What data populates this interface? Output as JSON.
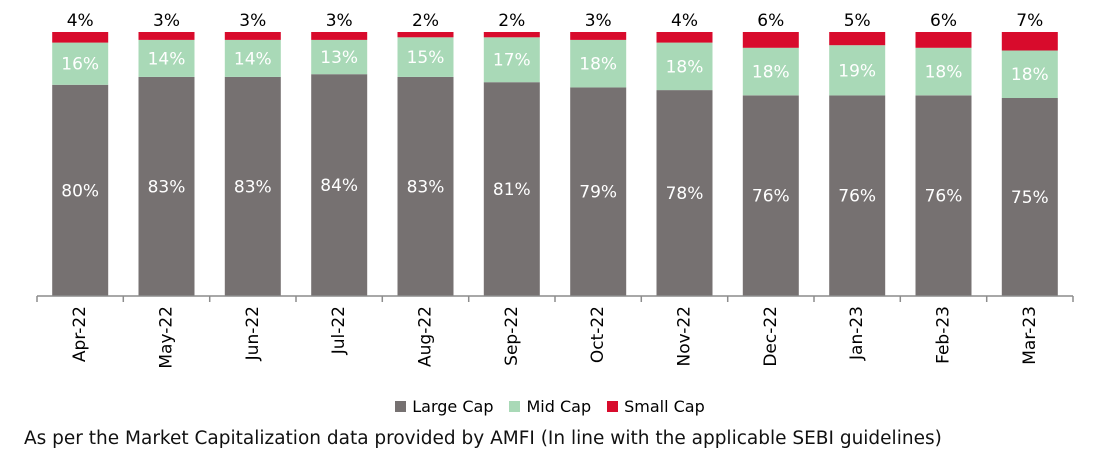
{
  "chart_data": {
    "type": "bar",
    "stacked": true,
    "categories": [
      "Apr-22",
      "May-22",
      "Jun-22",
      "Jul-22",
      "Aug-22",
      "Sep-22",
      "Oct-22",
      "Nov-22",
      "Dec-22",
      "Jan-23",
      "Feb-23",
      "Mar-23"
    ],
    "series": [
      {
        "name": "Large Cap",
        "color": "#767171",
        "values": [
          80,
          83,
          83,
          84,
          83,
          81,
          79,
          78,
          76,
          76,
          76,
          75
        ]
      },
      {
        "name": "Mid Cap",
        "color": "#a9d9b7",
        "values": [
          16,
          14,
          14,
          13,
          15,
          17,
          18,
          18,
          18,
          19,
          18,
          18
        ]
      },
      {
        "name": "Small Cap",
        "color": "#d80b2c",
        "values": [
          4,
          3,
          3,
          3,
          2,
          2,
          3,
          4,
          6,
          5,
          6,
          7
        ]
      }
    ],
    "value_suffix": "%",
    "ylim": [
      0,
      100
    ],
    "grid": false,
    "legend_position": "bottom"
  },
  "footnote": "As per the Market Capitalization data provided by AMFI (In line with the applicable SEBI guidelines)"
}
